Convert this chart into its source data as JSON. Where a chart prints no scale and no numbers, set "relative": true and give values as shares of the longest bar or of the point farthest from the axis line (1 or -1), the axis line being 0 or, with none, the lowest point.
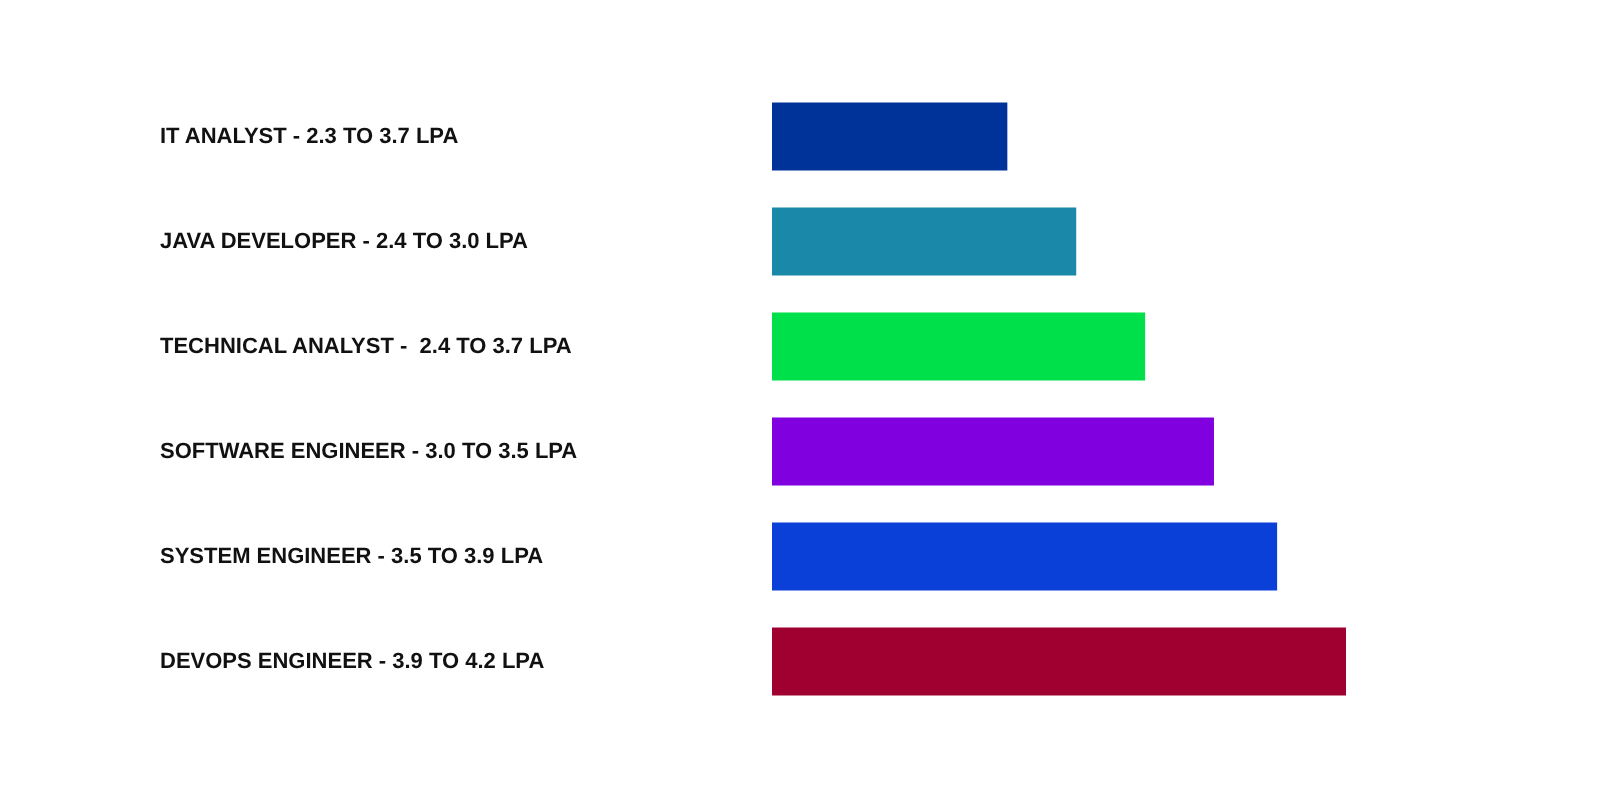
{
  "chart_data": {
    "type": "bar",
    "orientation": "horizontal",
    "relative": true,
    "categories": [
      "IT ANALYST - 2.3 TO 3.7 LPA",
      "JAVA DEVELOPER - 2.4 TO 3.0 LPA",
      "TECHNICAL ANALYST -  2.4 TO 3.7 LPA",
      "SOFTWARE ENGINEER - 3.0 TO 3.5 LPA",
      "SYSTEM ENGINEER - 3.5 TO 3.9 LPA",
      "DEVOPS ENGINEER - 3.9 TO 4.2 LPA"
    ],
    "values": [
      0.41,
      0.53,
      0.65,
      0.77,
      0.88,
      1
    ],
    "colors": [
      "#003399",
      "#1a88a8",
      "#00e04a",
      "#8000e0",
      "#0a40d8",
      "#a00030"
    ]
  }
}
